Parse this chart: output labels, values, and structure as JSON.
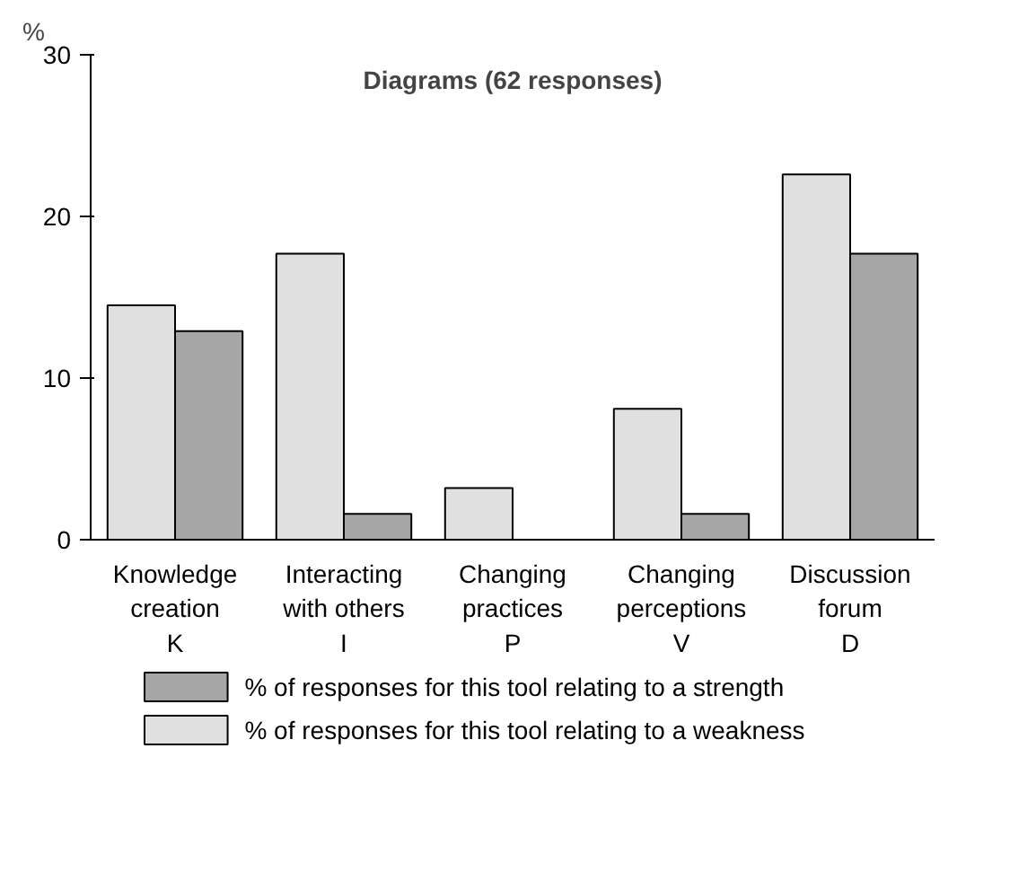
{
  "chart_data": {
    "type": "bar",
    "title": "Diagrams (62 responses)",
    "ylabel": "%",
    "categories": [
      "Knowledge\ncreation\nK",
      "Interacting\nwith others\nI",
      "Changing\npractices\nP",
      "Changing\nperceptions\nV",
      "Discussion\nforum\nD"
    ],
    "series": [
      {
        "name": "% of responses for this tool relating to a weakness",
        "color": "#e0e0e0",
        "values": [
          14.5,
          17.7,
          3.2,
          8.1,
          22.6
        ]
      },
      {
        "name": "% of responses for this tool relating to a strength",
        "color": "#a6a6a6",
        "values": [
          12.9,
          1.6,
          0,
          1.6,
          17.7
        ]
      }
    ],
    "ylim": [
      0,
      30
    ],
    "yticks": [
      0,
      10,
      20,
      30
    ],
    "grid": false,
    "legend": "bottom"
  }
}
